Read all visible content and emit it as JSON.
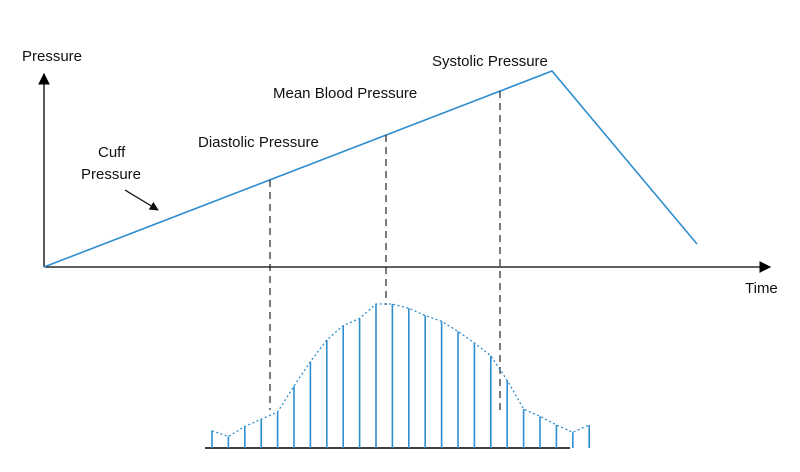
{
  "labels": {
    "y_axis": "Pressure",
    "x_axis": "Time",
    "cuff_line1": "Cuff",
    "cuff_line2": "Pressure",
    "diastolic": "Diastolic Pressure",
    "mean": "Mean Blood Pressure",
    "systolic": "Systolic Pressure"
  },
  "colors": {
    "curve": "#2e8ecf",
    "axis": "#000000",
    "dashed": "#111111"
  },
  "oscillation_amplitudes": [
    0.12,
    0.08,
    0.15,
    0.2,
    0.25,
    0.43,
    0.6,
    0.75,
    0.85,
    0.9,
    1.0,
    1.0,
    0.97,
    0.92,
    0.88,
    0.81,
    0.73,
    0.64,
    0.47,
    0.27,
    0.22,
    0.16,
    0.11,
    0.16
  ]
}
